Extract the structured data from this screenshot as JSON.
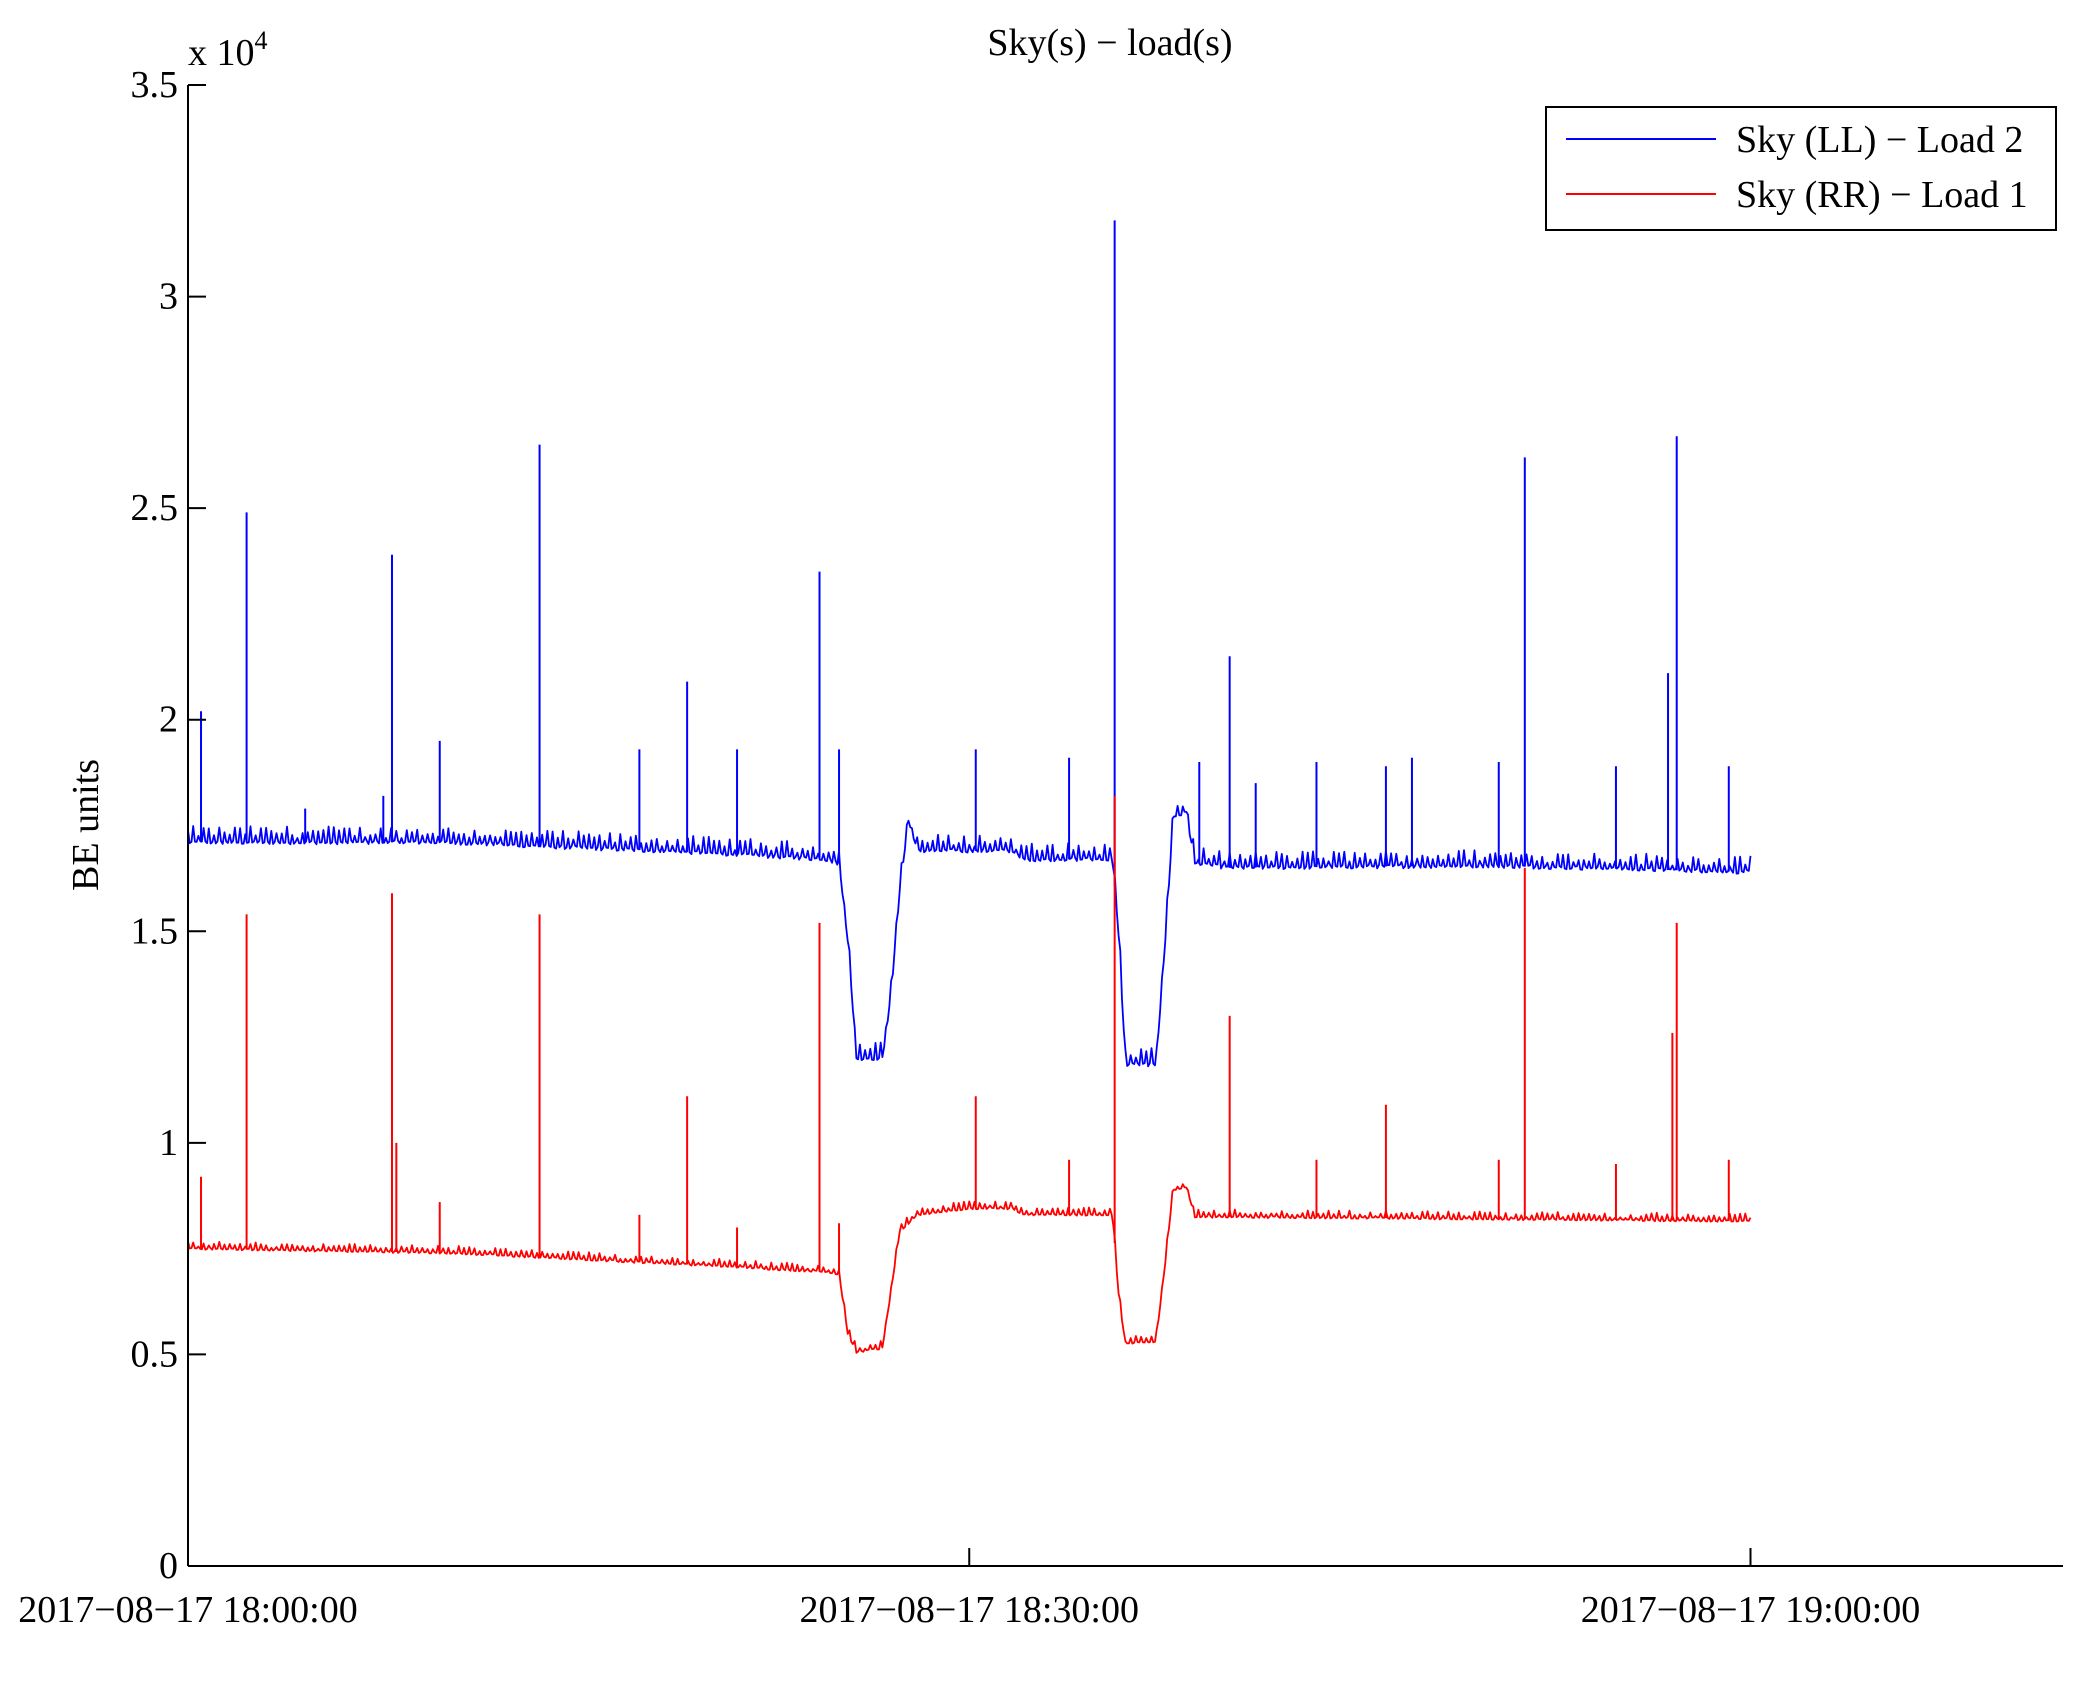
{
  "chart_data": {
    "type": "line",
    "title": "Sky(s) − load(s)",
    "xlabel": "",
    "ylabel": "BE units",
    "y_exponent_label": "x 10",
    "y_exponent": "4",
    "xlim": [
      "2017-08-17 18:00:00",
      "2017-08-17 19:12:00"
    ],
    "ylim": [
      0,
      35000
    ],
    "x_ticks": [
      "2017−08−17 18:00:00",
      "2017−08−17 18:30:00",
      "2017−08−17 19:00:00"
    ],
    "y_ticks": [
      {
        "value": 0,
        "label": "0"
      },
      {
        "value": 5000,
        "label": "0.5"
      },
      {
        "value": 10000,
        "label": "1"
      },
      {
        "value": 15000,
        "label": "1.5"
      },
      {
        "value": 20000,
        "label": "2"
      },
      {
        "value": 25000,
        "label": "2.5"
      },
      {
        "value": 30000,
        "label": "3"
      },
      {
        "value": 35000,
        "label": "3.5"
      }
    ],
    "grid": false,
    "legend_position": "top-right",
    "series": [
      {
        "name": "Sky (LL) − Load 2",
        "color": "#0000ff",
        "baseline": [
          [
            "2017-08-17 18:00:00",
            17100
          ],
          [
            "2017-08-17 18:10:00",
            17100
          ],
          [
            "2017-08-17 18:20:00",
            16850
          ],
          [
            "2017-08-17 18:24:30",
            16700
          ],
          [
            "2017-08-17 18:25:00",
            16600
          ],
          [
            "2017-08-17 18:25:20",
            14800
          ],
          [
            "2017-08-17 18:25:40",
            12000
          ],
          [
            "2017-08-17 18:26:40",
            12000
          ],
          [
            "2017-08-17 18:27:00",
            13500
          ],
          [
            "2017-08-17 18:27:20",
            16000
          ],
          [
            "2017-08-17 18:27:40",
            17600
          ],
          [
            "2017-08-17 18:28:00",
            16900
          ],
          [
            "2017-08-17 18:30:00",
            16900
          ],
          [
            "2017-08-17 18:31:40",
            16900
          ],
          [
            "2017-08-17 18:32:00",
            16700
          ],
          [
            "2017-08-17 18:35:30",
            16700
          ],
          [
            "2017-08-17 18:35:45",
            14800
          ],
          [
            "2017-08-17 18:36:00",
            11850
          ],
          [
            "2017-08-17 18:37:10",
            11850
          ],
          [
            "2017-08-17 18:37:30",
            14500
          ],
          [
            "2017-08-17 18:37:50",
            17700
          ],
          [
            "2017-08-17 18:38:20",
            17800
          ],
          [
            "2017-08-17 18:38:40",
            16600
          ],
          [
            "2017-08-17 18:40:00",
            16500
          ],
          [
            "2017-08-17 18:50:00",
            16550
          ],
          [
            "2017-08-17 19:00:00",
            16400
          ]
        ],
        "spikes": [
          [
            "2017-08-17 18:00:30",
            20200
          ],
          [
            "2017-08-17 18:02:15",
            24900
          ],
          [
            "2017-08-17 18:04:30",
            17900
          ],
          [
            "2017-08-17 18:07:30",
            18200
          ],
          [
            "2017-08-17 18:07:50",
            23900
          ],
          [
            "2017-08-17 18:09:40",
            19500
          ],
          [
            "2017-08-17 18:13:30",
            26500
          ],
          [
            "2017-08-17 18:17:20",
            19300
          ],
          [
            "2017-08-17 18:19:10",
            20900
          ],
          [
            "2017-08-17 18:21:05",
            19300
          ],
          [
            "2017-08-17 18:24:15",
            23500
          ],
          [
            "2017-08-17 18:25:00",
            19300
          ],
          [
            "2017-08-17 18:30:15",
            19300
          ],
          [
            "2017-08-17 18:33:50",
            19100
          ],
          [
            "2017-08-17 18:35:35",
            31800
          ],
          [
            "2017-08-17 18:38:50",
            19000
          ],
          [
            "2017-08-17 18:40:00",
            21500
          ],
          [
            "2017-08-17 18:41:00",
            18500
          ],
          [
            "2017-08-17 18:43:20",
            19000
          ],
          [
            "2017-08-17 18:46:00",
            18900
          ],
          [
            "2017-08-17 18:47:00",
            19100
          ],
          [
            "2017-08-17 18:50:20",
            19000
          ],
          [
            "2017-08-17 18:51:20",
            26200
          ],
          [
            "2017-08-17 18:54:50",
            18900
          ],
          [
            "2017-08-17 18:56:50",
            21100
          ],
          [
            "2017-08-17 18:57:10",
            26700
          ],
          [
            "2017-08-17 18:59:10",
            18900
          ]
        ]
      },
      {
        "name": "Sky (RR) − Load 1",
        "color": "#ff0000",
        "baseline": [
          [
            "2017-08-17 18:00:00",
            7500
          ],
          [
            "2017-08-17 18:10:00",
            7400
          ],
          [
            "2017-08-17 18:20:00",
            7100
          ],
          [
            "2017-08-17 18:24:30",
            6950
          ],
          [
            "2017-08-17 18:25:00",
            6900
          ],
          [
            "2017-08-17 18:25:20",
            5500
          ],
          [
            "2017-08-17 18:25:40",
            5050
          ],
          [
            "2017-08-17 18:26:40",
            5150
          ],
          [
            "2017-08-17 18:27:00",
            6500
          ],
          [
            "2017-08-17 18:27:20",
            7900
          ],
          [
            "2017-08-17 18:28:00",
            8300
          ],
          [
            "2017-08-17 18:30:00",
            8450
          ],
          [
            "2017-08-17 18:31:40",
            8450
          ],
          [
            "2017-08-17 18:32:00",
            8300
          ],
          [
            "2017-08-17 18:35:30",
            8300
          ],
          [
            "2017-08-17 18:35:45",
            6300
          ],
          [
            "2017-08-17 18:36:00",
            5250
          ],
          [
            "2017-08-17 18:37:10",
            5300
          ],
          [
            "2017-08-17 18:37:30",
            7000
          ],
          [
            "2017-08-17 18:37:50",
            8900
          ],
          [
            "2017-08-17 18:38:20",
            8950
          ],
          [
            "2017-08-17 18:38:40",
            8250
          ],
          [
            "2017-08-17 18:40:00",
            8250
          ],
          [
            "2017-08-17 18:50:00",
            8200
          ],
          [
            "2017-08-17 19:00:00",
            8150
          ]
        ],
        "spikes": [
          [
            "2017-08-17 18:00:30",
            9200
          ],
          [
            "2017-08-17 18:02:15",
            15400
          ],
          [
            "2017-08-17 18:07:50",
            15900
          ],
          [
            "2017-08-17 18:08:00",
            10000
          ],
          [
            "2017-08-17 18:09:40",
            8600
          ],
          [
            "2017-08-17 18:13:30",
            15400
          ],
          [
            "2017-08-17 18:17:20",
            8300
          ],
          [
            "2017-08-17 18:19:10",
            11100
          ],
          [
            "2017-08-17 18:21:05",
            8000
          ],
          [
            "2017-08-17 18:24:15",
            15200
          ],
          [
            "2017-08-17 18:25:00",
            8100
          ],
          [
            "2017-08-17 18:30:15",
            11100
          ],
          [
            "2017-08-17 18:33:50",
            9600
          ],
          [
            "2017-08-17 18:35:35",
            18200
          ],
          [
            "2017-08-17 18:40:00",
            13000
          ],
          [
            "2017-08-17 18:43:20",
            9600
          ],
          [
            "2017-08-17 18:46:00",
            10900
          ],
          [
            "2017-08-17 18:50:20",
            9600
          ],
          [
            "2017-08-17 18:51:20",
            16500
          ],
          [
            "2017-08-17 18:54:50",
            9500
          ],
          [
            "2017-08-17 18:57:00",
            12600
          ],
          [
            "2017-08-17 18:57:10",
            15200
          ],
          [
            "2017-08-17 18:59:10",
            9600
          ]
        ]
      }
    ]
  }
}
